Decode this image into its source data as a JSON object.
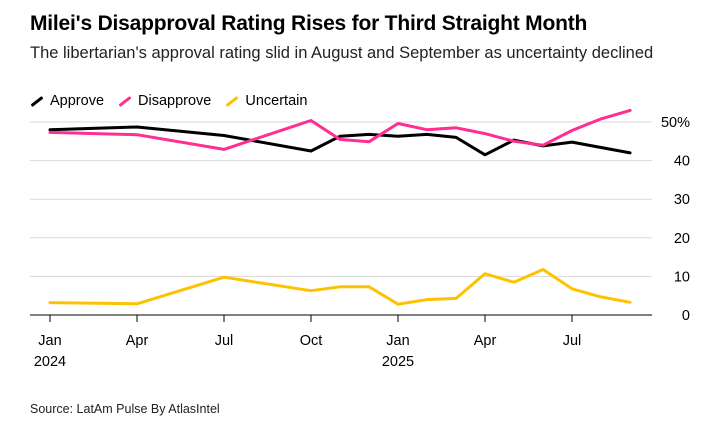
{
  "title": "Milei's Disapproval Rating Rises for Third Straight Month",
  "subtitle": "The libertarian's approval rating slid in August and September as uncertainty declined",
  "source": "Source: LatAm Pulse By AtlasIntel",
  "chart_data": {
    "type": "line",
    "ylim": [
      0,
      50
    ],
    "y_ticks": [
      0,
      10,
      20,
      30,
      40,
      50
    ],
    "y_tick_labels": [
      "0",
      "10",
      "20",
      "30",
      "40",
      "50%"
    ],
    "xlim": [
      2024.0,
      2025.75
    ],
    "x_ticks": [
      {
        "x": 2024.0,
        "label": "Jan",
        "year": "2024"
      },
      {
        "x": 2024.25,
        "label": "Apr",
        "year": ""
      },
      {
        "x": 2024.5,
        "label": "Jul",
        "year": ""
      },
      {
        "x": 2024.75,
        "label": "Oct",
        "year": ""
      },
      {
        "x": 2025.0,
        "label": "Jan",
        "year": "2025"
      },
      {
        "x": 2025.25,
        "label": "Apr",
        "year": ""
      },
      {
        "x": 2025.5,
        "label": "Jul",
        "year": ""
      }
    ],
    "grid": true,
    "legend": "top-left",
    "series": [
      {
        "name": "Approve",
        "color": "#000000",
        "x": [
          2024.0,
          2024.25,
          2024.5,
          2024.75,
          2024.833,
          2024.917,
          2025.0,
          2025.083,
          2025.167,
          2025.25,
          2025.333,
          2025.417,
          2025.5,
          2025.667
        ],
        "values": [
          48.0,
          48.7,
          46.5,
          42.5,
          46.3,
          46.8,
          46.3,
          46.8,
          46.0,
          41.5,
          45.3,
          43.8,
          44.8,
          42.0
        ]
      },
      {
        "name": "Disapprove",
        "color": "#ff2e93",
        "x": [
          2024.0,
          2024.25,
          2024.5,
          2024.75,
          2024.833,
          2024.917,
          2025.0,
          2025.083,
          2025.167,
          2025.25,
          2025.333,
          2025.417,
          2025.5,
          2025.583,
          2025.667
        ],
        "values": [
          47.3,
          46.7,
          42.9,
          50.4,
          45.5,
          44.9,
          49.6,
          48.0,
          48.5,
          47.0,
          45.0,
          44.0,
          47.8,
          50.8,
          53.0
        ]
      },
      {
        "name": "Uncertain",
        "color": "#ffc200",
        "x": [
          2024.0,
          2024.25,
          2024.5,
          2024.75,
          2024.833,
          2024.917,
          2025.0,
          2025.083,
          2025.167,
          2025.25,
          2025.333,
          2025.417,
          2025.5,
          2025.583,
          2025.667
        ],
        "values": [
          3.2,
          2.9,
          9.8,
          6.3,
          7.3,
          7.3,
          2.8,
          4.0,
          4.3,
          10.7,
          8.5,
          11.8,
          6.8,
          4.7,
          3.3
        ]
      }
    ]
  }
}
